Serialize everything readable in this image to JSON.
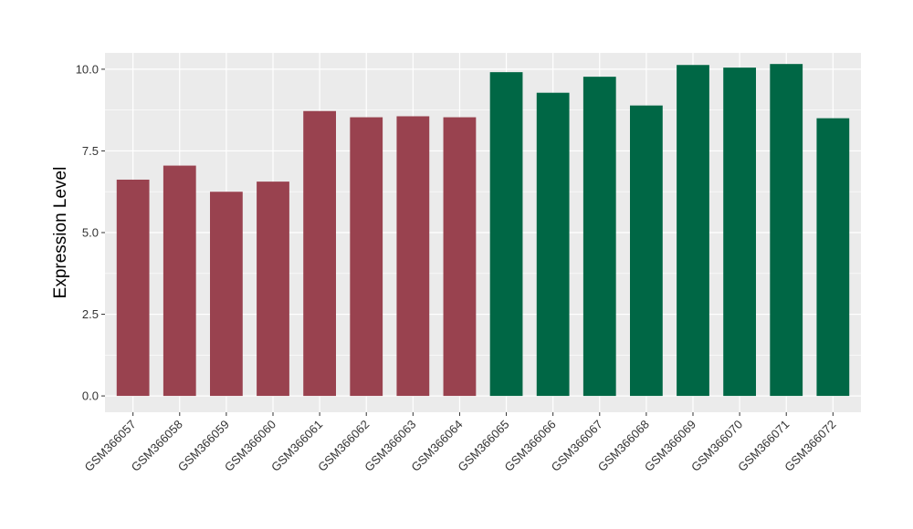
{
  "chart_data": {
    "type": "bar",
    "title": "",
    "xlabel": "",
    "ylabel": "Expression Level",
    "ylim": [
      -0.5,
      10.5
    ],
    "yticks": [
      0.0,
      2.5,
      5.0,
      7.5,
      10.0
    ],
    "ytick_labels": [
      "0.0",
      "2.5",
      "5.0",
      "7.5",
      "10.0"
    ],
    "grid": true,
    "legend": "none",
    "categories": [
      "GSM366057",
      "GSM366058",
      "GSM366059",
      "GSM366060",
      "GSM366061",
      "GSM366062",
      "GSM366063",
      "GSM366064",
      "GSM366065",
      "GSM366066",
      "GSM366067",
      "GSM366068",
      "GSM366069",
      "GSM366070",
      "GSM366071",
      "GSM366072"
    ],
    "values": [
      6.62,
      7.05,
      6.25,
      6.56,
      8.72,
      8.53,
      8.56,
      8.53,
      9.91,
      9.28,
      9.77,
      8.89,
      10.13,
      10.05,
      10.16,
      8.5
    ],
    "groups": [
      0,
      0,
      0,
      0,
      0,
      0,
      0,
      0,
      1,
      1,
      1,
      1,
      1,
      1,
      1,
      1
    ],
    "group_colors": [
      "#99424F",
      "#006745"
    ],
    "panel_background": "#EBEBEB",
    "grid_color": "#FFFFFF"
  }
}
